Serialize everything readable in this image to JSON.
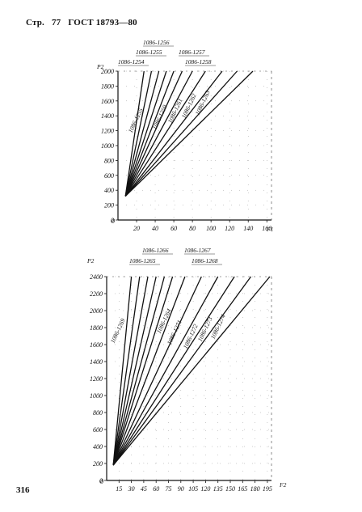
{
  "header": {
    "page_prefix": "Стр.",
    "page_no": "77",
    "standard": "ГОСТ 18793—80"
  },
  "page_number": "316",
  "chart_data": [
    {
      "type": "line",
      "ylabel": "P2",
      "xlabel": "F1",
      "xlim": [
        0,
        165
      ],
      "ylim": [
        0,
        2000
      ],
      "x_ticks": [
        "20",
        "40",
        "60",
        "80",
        "100",
        "120",
        "140",
        "160"
      ],
      "y_ticks": [
        "0",
        "200",
        "400",
        "600",
        "800",
        "1000",
        "1200",
        "1400",
        "1600",
        "1800",
        "2000"
      ],
      "legend_top": [
        "1086-1256",
        "1086-1255",
        "1086-1257",
        "1086-1254",
        "1086-1258"
      ],
      "rotated_labels": [
        "1086-1255",
        "1086-1259",
        "1086-1261",
        "1086-1262",
        "1086-1263"
      ],
      "series_end_x": [
        28,
        36,
        44,
        52,
        60,
        69,
        80,
        94,
        112,
        128,
        145
      ],
      "series_start": {
        "x": 8,
        "y": 320
      },
      "series_end_y": 2000
    },
    {
      "type": "line",
      "ylabel": "P2",
      "xlabel": "F2",
      "xlim": [
        0,
        200
      ],
      "ylim": [
        0,
        2400
      ],
      "x_ticks": [
        "15",
        "30",
        "45",
        "60",
        "75",
        "90",
        "105",
        "120",
        "135",
        "150",
        "165",
        "180",
        "195"
      ],
      "y_ticks": [
        "0",
        "200",
        "400",
        "600",
        "800",
        "1000",
        "1200",
        "1400",
        "1600",
        "1800",
        "2000",
        "2200",
        "2400"
      ],
      "legend_top": [
        "1086-1266",
        "1086-1267",
        "1086-1265",
        "1086-1268"
      ],
      "rotated_labels": [
        "1086-1269",
        "1086-1264",
        "1086-1271",
        "1086-1272",
        "1086-1273",
        "1086-1274"
      ],
      "series_end_x": [
        30,
        40,
        50,
        60,
        70,
        80,
        95,
        115,
        135,
        155,
        175,
        198
      ],
      "series_start": {
        "x": 8,
        "y": 180
      },
      "series_end_y": 2400
    }
  ]
}
